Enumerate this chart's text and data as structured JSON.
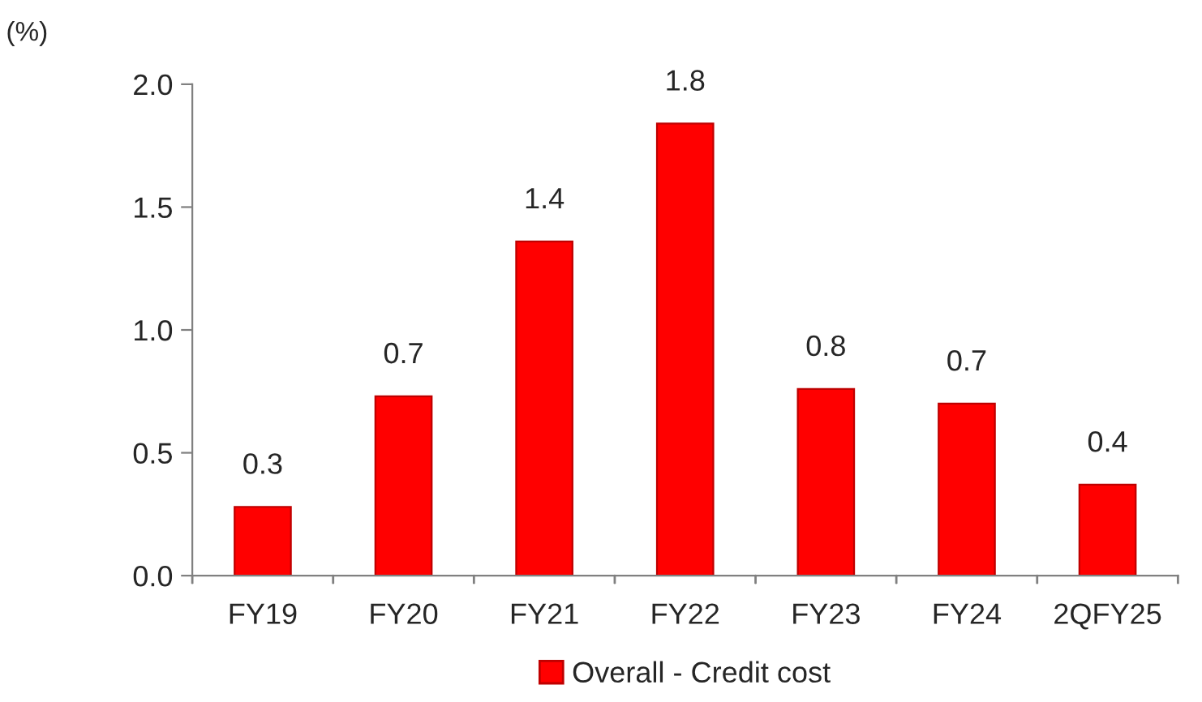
{
  "chart_data": {
    "type": "bar",
    "ylabel": "(%)",
    "categories": [
      "FY19",
      "FY20",
      "FY21",
      "FY22",
      "FY23",
      "FY24",
      "2QFY25"
    ],
    "series": [
      {
        "name": "Overall - Credit cost",
        "color": "#ff0000",
        "values": [
          0.28,
          0.73,
          1.36,
          1.84,
          0.76,
          0.7,
          0.37
        ],
        "value_labels": [
          "0.3",
          "0.7",
          "1.4",
          "1.8",
          "0.8",
          "0.7",
          "0.4"
        ]
      }
    ],
    "ylim": [
      0,
      2.0
    ],
    "yticks": [
      {
        "value": 0,
        "label": "0.0"
      },
      {
        "value": 0.5,
        "label": "0.5"
      },
      {
        "value": 1.0,
        "label": "1.0"
      },
      {
        "value": 1.5,
        "label": "1.5"
      },
      {
        "value": 2.0,
        "label": "2.0"
      }
    ],
    "grid": false,
    "legend": "bottom"
  }
}
